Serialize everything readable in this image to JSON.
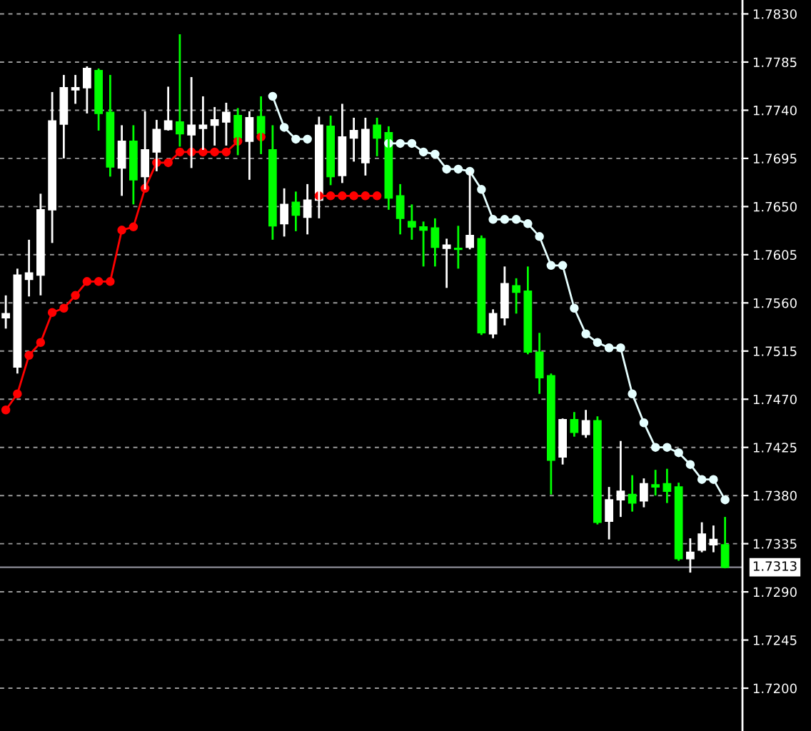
{
  "chart_data": {
    "type": "candlestick",
    "categories": [
      null,
      null,
      null,
      null,
      null,
      null,
      null,
      null,
      null,
      null,
      null,
      null,
      null,
      null,
      null,
      null,
      null,
      null,
      null,
      null,
      null,
      null,
      null,
      null,
      null,
      null,
      null,
      null,
      null,
      null,
      null,
      null,
      null,
      null,
      null,
      null,
      null,
      null,
      null,
      null,
      null,
      null,
      null,
      null,
      null,
      null,
      null,
      null,
      null,
      null,
      null,
      null,
      null,
      null,
      null,
      null,
      null,
      null,
      null,
      null,
      null,
      null,
      null
    ],
    "ohlc": [
      [
        1.7546,
        1.7567,
        1.7536,
        1.755
      ],
      [
        1.75,
        1.7592,
        1.7494,
        1.7586
      ],
      [
        1.7582,
        1.7619,
        1.7566,
        1.7588
      ],
      [
        1.7586,
        1.7662,
        1.7567,
        1.7647
      ],
      [
        1.7647,
        1.7757,
        1.7616,
        1.773
      ],
      [
        1.7727,
        1.7773,
        1.7695,
        1.7761
      ],
      [
        1.7759,
        1.7773,
        1.7746,
        1.7761
      ],
      [
        1.7761,
        1.7781,
        1.7737,
        1.7779
      ],
      [
        1.7777,
        1.7779,
        1.7721,
        1.7737
      ],
      [
        1.7738,
        1.7773,
        1.7678,
        1.7687
      ],
      [
        1.7686,
        1.7726,
        1.766,
        1.7711
      ],
      [
        1.7711,
        1.7726,
        1.7652,
        1.7675
      ],
      [
        1.7678,
        1.7739,
        1.7666,
        1.7703
      ],
      [
        1.7701,
        1.7731,
        1.7683,
        1.7722
      ],
      [
        1.7722,
        1.7762,
        1.7721,
        1.773
      ],
      [
        1.7729,
        1.7811,
        1.7706,
        1.7718
      ],
      [
        1.7717,
        1.7771,
        1.7686,
        1.7726
      ],
      [
        1.7723,
        1.7753,
        1.7703,
        1.7726
      ],
      [
        1.7726,
        1.7743,
        1.7707,
        1.7731
      ],
      [
        1.7729,
        1.7747,
        1.7707,
        1.7738
      ],
      [
        1.7735,
        1.7742,
        1.7698,
        1.7714
      ],
      [
        1.7711,
        1.7739,
        1.7675,
        1.7733
      ],
      [
        1.7734,
        1.7753,
        1.7699,
        1.7718
      ],
      [
        1.7703,
        1.7726,
        1.7619,
        1.7632
      ],
      [
        1.7634,
        1.7667,
        1.7622,
        1.7652
      ],
      [
        1.7654,
        1.7664,
        1.7627,
        1.7642
      ],
      [
        1.764,
        1.7671,
        1.7624,
        1.7656
      ],
      [
        1.7656,
        1.7734,
        1.7639,
        1.7726
      ],
      [
        1.7725,
        1.7735,
        1.767,
        1.7678
      ],
      [
        1.7679,
        1.7746,
        1.7672,
        1.7715
      ],
      [
        1.7714,
        1.7733,
        1.7692,
        1.7721
      ],
      [
        1.7691,
        1.7733,
        1.7679,
        1.7722
      ],
      [
        1.7726,
        1.7733,
        1.7697,
        1.7714
      ],
      [
        1.7719,
        1.7725,
        1.7647,
        1.7658
      ],
      [
        1.766,
        1.7671,
        1.7624,
        1.7639
      ],
      [
        1.7636,
        1.7652,
        1.7619,
        1.7631
      ],
      [
        1.7631,
        1.7636,
        1.7594,
        1.7628
      ],
      [
        1.763,
        1.7639,
        1.7594,
        1.7612
      ],
      [
        1.7611,
        1.762,
        1.7574,
        1.7614
      ],
      [
        1.7611,
        1.7632,
        1.7592,
        1.761
      ],
      [
        1.7612,
        1.7683,
        1.761,
        1.7623
      ],
      [
        1.762,
        1.7623,
        1.753,
        1.7532
      ],
      [
        1.7531,
        1.7554,
        1.7527,
        1.755
      ],
      [
        1.7546,
        1.7594,
        1.7539,
        1.7578
      ],
      [
        1.7576,
        1.7583,
        1.755,
        1.757
      ],
      [
        1.7571,
        1.7594,
        1.7512,
        1.7514
      ],
      [
        1.7514,
        1.7532,
        1.7475,
        1.749
      ],
      [
        1.7492,
        1.7494,
        1.7381,
        1.7413
      ],
      [
        1.7416,
        1.7452,
        1.7409,
        1.7451
      ],
      [
        1.7451,
        1.7458,
        1.7435,
        1.7439
      ],
      [
        1.7437,
        1.746,
        1.7434,
        1.745
      ],
      [
        1.745,
        1.7454,
        1.7353,
        1.7355
      ],
      [
        1.7356,
        1.7388,
        1.7339,
        1.7376
      ],
      [
        1.7376,
        1.7431,
        1.736,
        1.7384
      ],
      [
        1.7381,
        1.7399,
        1.7365,
        1.7373
      ],
      [
        1.7375,
        1.7396,
        1.7369,
        1.7391
      ],
      [
        1.739,
        1.7404,
        1.738,
        1.7388
      ],
      [
        1.7391,
        1.7405,
        1.7373,
        1.7384
      ],
      [
        1.7388,
        1.7392,
        1.7319,
        1.7321
      ],
      [
        1.7321,
        1.734,
        1.7308,
        1.7327
      ],
      [
        1.7329,
        1.7355,
        1.7327,
        1.7344
      ],
      [
        1.7334,
        1.7352,
        1.7327,
        1.7339
      ],
      [
        1.7334,
        1.736,
        1.7312,
        1.7313
      ]
    ],
    "colors": [
      "#ffffff",
      "#ffffff",
      "#ffffff",
      "#ffffff",
      "#ffffff",
      "#ffffff",
      "#ffffff",
      "#ffffff",
      "#00ff00",
      "#00ff00",
      "#ffffff",
      "#00ff00",
      "#ffffff",
      "#ffffff",
      "#ffffff",
      "#00ff00",
      "#ffffff",
      "#ffffff",
      "#ffffff",
      "#ffffff",
      "#00ff00",
      "#ffffff",
      "#00ff00",
      "#00ff00",
      "#ffffff",
      "#00ff00",
      "#ffffff",
      "#ffffff",
      "#00ff00",
      "#ffffff",
      "#ffffff",
      "#ffffff",
      "#00ff00",
      "#00ff00",
      "#00ff00",
      "#00ff00",
      "#00ff00",
      "#00ff00",
      "#ffffff",
      "#00ff00",
      "#ffffff",
      "#00ff00",
      "#ffffff",
      "#ffffff",
      "#00ff00",
      "#00ff00",
      "#00ff00",
      "#00ff00",
      "#ffffff",
      "#00ff00",
      "#ffffff",
      "#00ff00",
      "#ffffff",
      "#ffffff",
      "#00ff00",
      "#ffffff",
      "#00ff00",
      "#00ff00",
      "#00ff00",
      "#ffffff",
      "#ffffff",
      "#ffffff",
      "#00ff00"
    ],
    "series": [
      {
        "type": "line",
        "color": "#ff0000",
        "marker": "circle",
        "values": [
          1.746,
          1.7475,
          1.7511,
          1.7523,
          1.7551,
          1.7555,
          1.7567,
          1.758,
          1.758,
          1.758,
          1.7628,
          1.7631,
          1.7667,
          1.7691,
          1.7691,
          1.7701,
          1.7701,
          1.7701,
          1.7701,
          1.7701,
          1.7711,
          null,
          1.7715,
          null,
          null,
          null,
          null,
          1.766,
          1.766,
          1.766,
          1.766,
          1.766,
          1.766,
          null,
          null,
          null,
          null,
          null,
          null,
          null,
          null,
          null,
          null,
          null,
          null,
          null,
          null,
          null,
          null,
          null,
          null,
          null,
          null,
          null,
          null,
          null,
          null,
          null,
          null,
          null,
          null,
          null,
          null
        ]
      },
      {
        "type": "line",
        "color": "#e6ffff",
        "marker": "circle",
        "values": [
          null,
          null,
          null,
          null,
          null,
          null,
          null,
          null,
          null,
          null,
          null,
          null,
          null,
          null,
          null,
          null,
          null,
          null,
          null,
          null,
          null,
          null,
          null,
          1.7753,
          1.7724,
          1.7713,
          1.7713,
          null,
          null,
          null,
          null,
          null,
          null,
          1.7709,
          1.7709,
          1.7709,
          1.7701,
          1.7699,
          1.7685,
          1.7685,
          1.7683,
          1.7666,
          1.7638,
          1.7638,
          1.7638,
          1.7634,
          1.7622,
          1.7595,
          1.7595,
          1.7555,
          1.7531,
          1.7523,
          1.7518,
          1.7518,
          1.7475,
          1.7448,
          1.7425,
          1.7425,
          1.742,
          1.7409,
          1.7395,
          1.7395,
          1.7376
        ]
      }
    ],
    "ylim": [
      1.716,
      1.7843
    ],
    "yticks": [
      {
        "value": 1.72,
        "label": "1.7200"
      },
      {
        "value": 1.7245,
        "label": "1.7245"
      },
      {
        "value": 1.729,
        "label": "1.7290"
      },
      {
        "value": 1.7335,
        "label": "1.7335"
      },
      {
        "value": 1.738,
        "label": "1.7380"
      },
      {
        "value": 1.7425,
        "label": "1.7425"
      },
      {
        "value": 1.747,
        "label": "1.7470"
      },
      {
        "value": 1.7515,
        "label": "1.7515"
      },
      {
        "value": 1.756,
        "label": "1.7560"
      },
      {
        "value": 1.7605,
        "label": "1.7605"
      },
      {
        "value": 1.765,
        "label": "1.7650"
      },
      {
        "value": 1.7695,
        "label": "1.7695"
      },
      {
        "value": 1.774,
        "label": "1.7740"
      },
      {
        "value": 1.7785,
        "label": "1.7785"
      },
      {
        "value": 1.783,
        "label": "1.7830"
      }
    ],
    "ref_lines": [
      {
        "axis": "y",
        "value": 1.7313,
        "label": "1.7313",
        "color": "#8c8c96",
        "line_style": "solid"
      }
    ],
    "grid": "y",
    "tick_labels": "y"
  }
}
